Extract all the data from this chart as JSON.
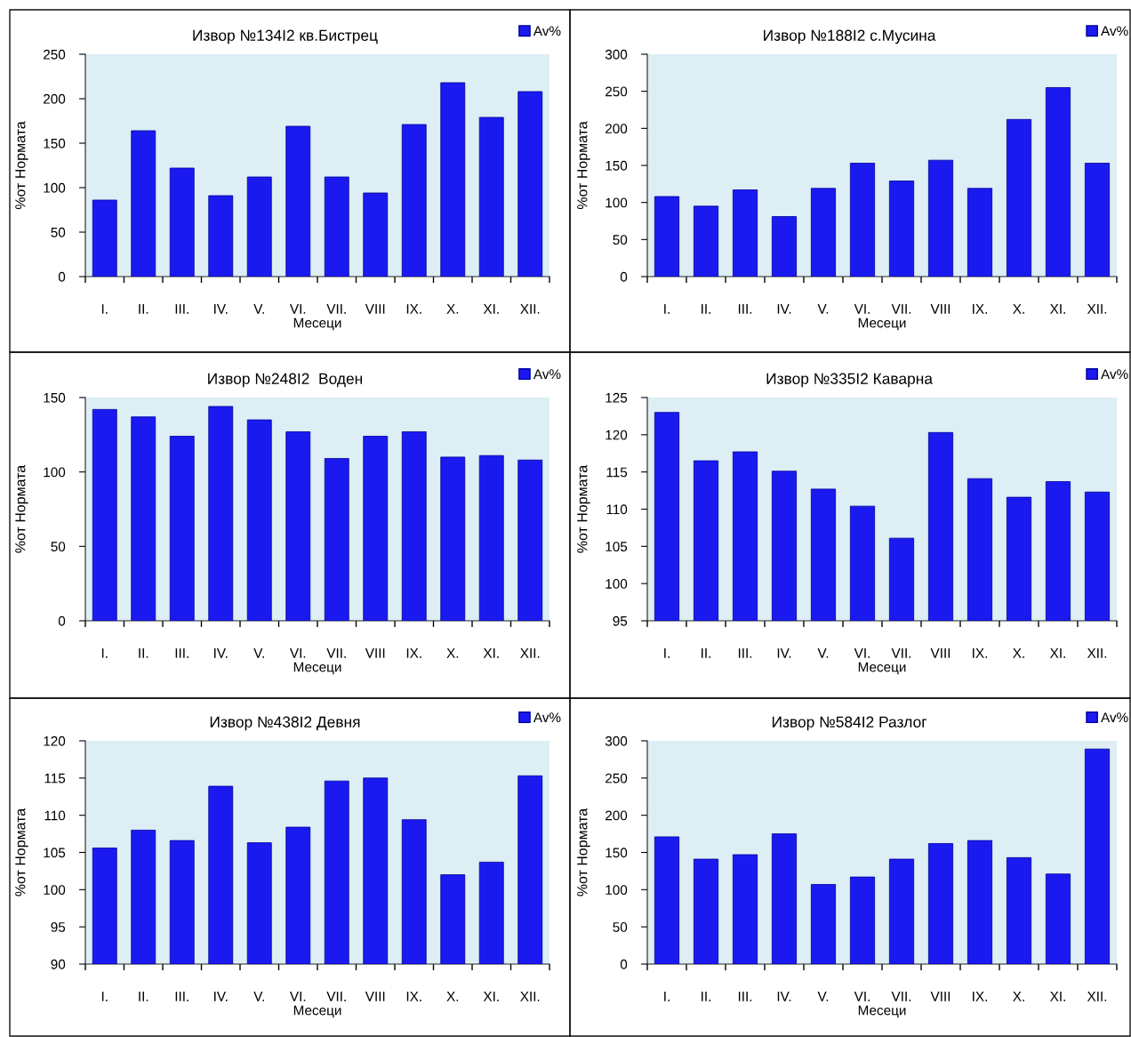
{
  "chart_data": [
    {
      "type": "bar",
      "title": "Извор №134I2 кв.Бистрец",
      "xlabel": "Месеци",
      "ylabel": "%от Нормата",
      "categories": [
        "I.",
        "II.",
        "III.",
        "IV.",
        "V.",
        "VI.",
        "VII.",
        "VIII",
        "IX.",
        "X.",
        "XI.",
        "XII."
      ],
      "series": [
        {
          "name": "Av%",
          "color": "#1a1af0",
          "values": [
            86,
            164,
            122,
            91,
            112,
            169,
            112,
            94,
            171,
            218,
            179,
            208
          ]
        }
      ],
      "ylim": [
        0,
        250
      ],
      "yticks": [
        0,
        50,
        100,
        150,
        200,
        250
      ],
      "legend": "top right"
    },
    {
      "type": "bar",
      "title": "Извор №188I2 с.Мусина",
      "xlabel": "Месеци",
      "ylabel": "%от Нормата",
      "categories": [
        "I.",
        "II.",
        "III.",
        "IV.",
        "V.",
        "VI.",
        "VII.",
        "VIII",
        "IX.",
        "X.",
        "XI.",
        "XII."
      ],
      "series": [
        {
          "name": "Av%",
          "color": "#1a1af0",
          "values": [
            108,
            95,
            117,
            81,
            119,
            153,
            129,
            157,
            119,
            212,
            255,
            153
          ]
        }
      ],
      "ylim": [
        0,
        300
      ],
      "yticks": [
        0,
        50,
        100,
        150,
        200,
        250,
        300
      ],
      "legend": "top right"
    },
    {
      "type": "bar",
      "title": "Извор №248I2  Воден",
      "xlabel": "Месеци",
      "ylabel": "%от Нормата",
      "categories": [
        "I.",
        "II.",
        "III.",
        "IV.",
        "V.",
        "VI.",
        "VII.",
        "VIII",
        "IX.",
        "X.",
        "XI.",
        "XII."
      ],
      "series": [
        {
          "name": "Av%",
          "color": "#1a1af0",
          "values": [
            142,
            137,
            124,
            144,
            135,
            127,
            109,
            124,
            127,
            110,
            111,
            108
          ]
        }
      ],
      "ylim": [
        0,
        150
      ],
      "yticks": [
        0,
        50,
        100,
        150
      ],
      "legend": "top right"
    },
    {
      "type": "bar",
      "title": "Извор №335I2 Каварна",
      "xlabel": "Месеци",
      "ylabel": "%от Нормата",
      "categories": [
        "I.",
        "II.",
        "III.",
        "IV.",
        "V.",
        "VI.",
        "VII.",
        "VIII",
        "IX.",
        "X.",
        "XI.",
        "XII."
      ],
      "series": [
        {
          "name": "Av%",
          "color": "#1a1af0",
          "values": [
            123.0,
            116.5,
            117.7,
            115.1,
            112.7,
            110.4,
            106.1,
            120.3,
            114.1,
            111.6,
            113.7,
            112.3
          ]
        }
      ],
      "ylim": [
        95,
        125
      ],
      "yticks": [
        95,
        100,
        105,
        110,
        115,
        120,
        125
      ],
      "legend": "top right"
    },
    {
      "type": "bar",
      "title": "Извор №438I2 Девня",
      "xlabel": "Месеци",
      "ylabel": "%от Нормата",
      "categories": [
        "I.",
        "II.",
        "III.",
        "IV.",
        "V.",
        "VI.",
        "VII.",
        "VIII",
        "IX.",
        "X.",
        "XI.",
        "XII."
      ],
      "series": [
        {
          "name": "Av%",
          "color": "#1a1af0",
          "values": [
            105.6,
            108.0,
            106.6,
            113.9,
            106.3,
            108.4,
            114.6,
            115.0,
            109.4,
            102.0,
            103.7,
            115.3
          ]
        }
      ],
      "ylim": [
        90,
        120
      ],
      "yticks": [
        90,
        95,
        100,
        105,
        110,
        115,
        120
      ],
      "legend": "top right"
    },
    {
      "type": "bar",
      "title": "Извор №584I2 Разлог",
      "xlabel": "Месеци",
      "ylabel": "%от Нормата",
      "categories": [
        "I.",
        "II.",
        "III.",
        "IV.",
        "V.",
        "VI.",
        "VII.",
        "VIII",
        "IX.",
        "X.",
        "XI.",
        "XII."
      ],
      "series": [
        {
          "name": "Av%",
          "color": "#1a1af0",
          "values": [
            171,
            141,
            147,
            175,
            107,
            117,
            141,
            162,
            166,
            143,
            121,
            289
          ]
        }
      ],
      "ylim": [
        0,
        300
      ],
      "yticks": [
        0,
        50,
        100,
        150,
        200,
        250,
        300
      ],
      "legend": "top right"
    }
  ]
}
